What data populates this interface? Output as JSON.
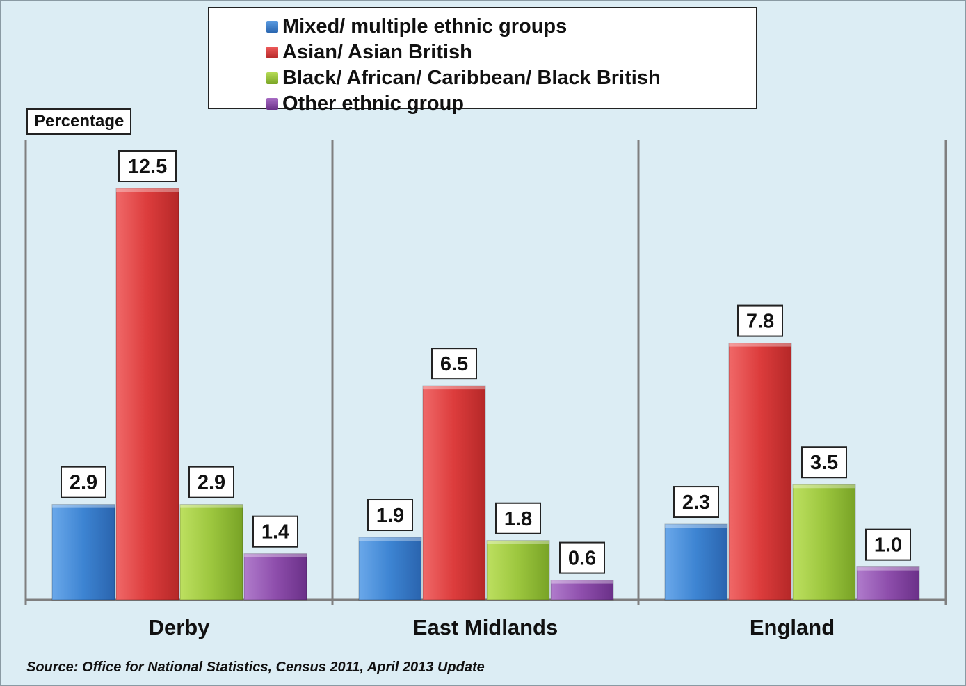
{
  "chart_data": {
    "type": "bar",
    "categories": [
      "Derby",
      "East Midlands",
      "England"
    ],
    "series": [
      {
        "name": "Mixed/ multiple ethnic groups",
        "values": [
          2.9,
          1.9,
          2.3
        ],
        "color": "#3a7fce"
      },
      {
        "name": "Asian/ Asian British",
        "values": [
          12.5,
          6.5,
          7.8
        ],
        "color": "#d93b3b"
      },
      {
        "name": "Black/ African/ Caribbean/ Black British",
        "values": [
          2.9,
          1.8,
          3.5
        ],
        "color": "#96c03a"
      },
      {
        "name": "Other ethnic group",
        "values": [
          1.4,
          0.6,
          1.0
        ],
        "color": "#8a4aa8"
      }
    ],
    "data_labels": [
      [
        "2.9",
        "1.9",
        "2.3"
      ],
      [
        "12.5",
        "6.5",
        "7.8"
      ],
      [
        "2.9",
        "1.8",
        "3.5"
      ],
      [
        "1.4",
        "0.6",
        "1.0"
      ]
    ],
    "ylabel": "Percentage",
    "ylim": [
      0,
      14
    ],
    "legend_position": "top-center",
    "grid": false
  },
  "source": "Source: Office for National Statistics, Census 2011, April 2013 Update"
}
